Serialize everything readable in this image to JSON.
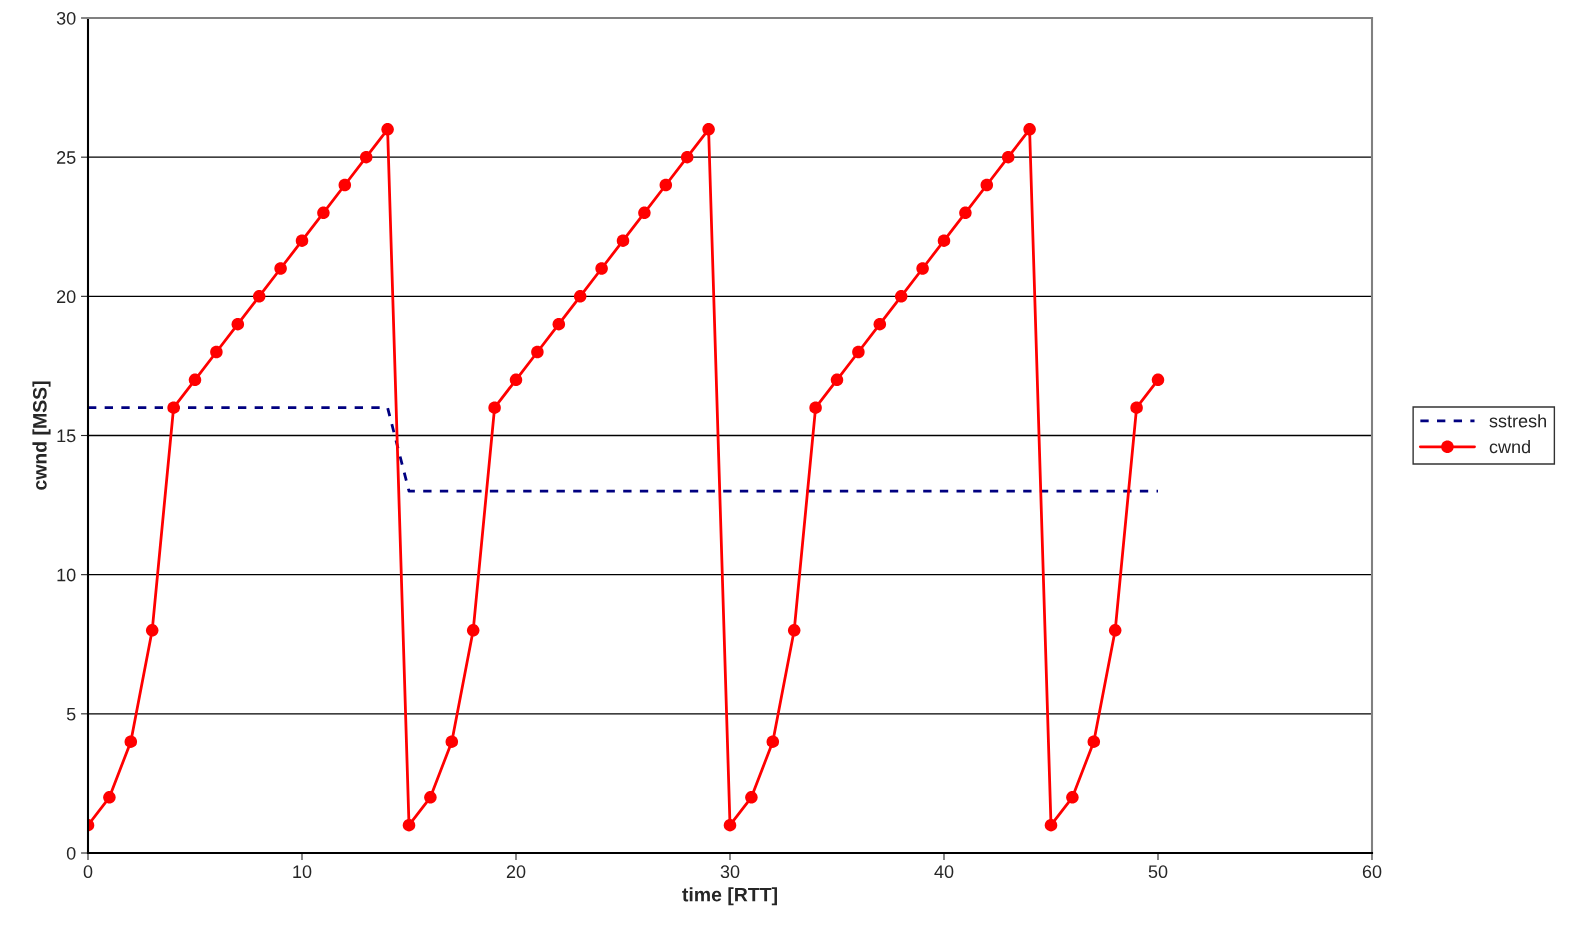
{
  "chart_data": {
    "type": "line",
    "xlabel": "time [RTT]",
    "ylabel": "cwnd [MSS]",
    "xlim": [
      0,
      60
    ],
    "xticks": [
      0,
      10,
      20,
      30,
      40,
      50,
      60
    ],
    "ylim": [
      0,
      30
    ],
    "yticks": [
      0,
      5,
      10,
      15,
      20,
      25,
      30
    ],
    "grid": "y",
    "legend": "right",
    "series": [
      {
        "name": "sstresh",
        "color": "#000080",
        "line_style": "dashed",
        "marker": "none",
        "x": [
          0,
          14,
          15,
          50
        ],
        "values": [
          16,
          16,
          13,
          13
        ]
      },
      {
        "name": "cwnd",
        "color": "#ff0000",
        "line_style": "solid",
        "marker": "circle",
        "x": [
          0,
          1,
          2,
          3,
          4,
          5,
          6,
          7,
          8,
          9,
          10,
          11,
          12,
          13,
          14,
          15,
          16,
          17,
          18,
          19,
          20,
          21,
          22,
          23,
          24,
          25,
          26,
          27,
          28,
          29,
          30,
          31,
          32,
          33,
          34,
          35,
          36,
          37,
          38,
          39,
          40,
          41,
          42,
          43,
          44,
          45,
          46,
          47,
          48,
          49,
          50
        ],
        "values": [
          1,
          2,
          4,
          8,
          16,
          17,
          18,
          19,
          20,
          21,
          22,
          23,
          24,
          25,
          26,
          1,
          2,
          4,
          8,
          16,
          17,
          18,
          19,
          20,
          21,
          22,
          23,
          24,
          25,
          26,
          1,
          2,
          4,
          8,
          16,
          17,
          18,
          19,
          20,
          21,
          22,
          23,
          24,
          25,
          26,
          1,
          2,
          4,
          8,
          16,
          17
        ]
      }
    ]
  }
}
